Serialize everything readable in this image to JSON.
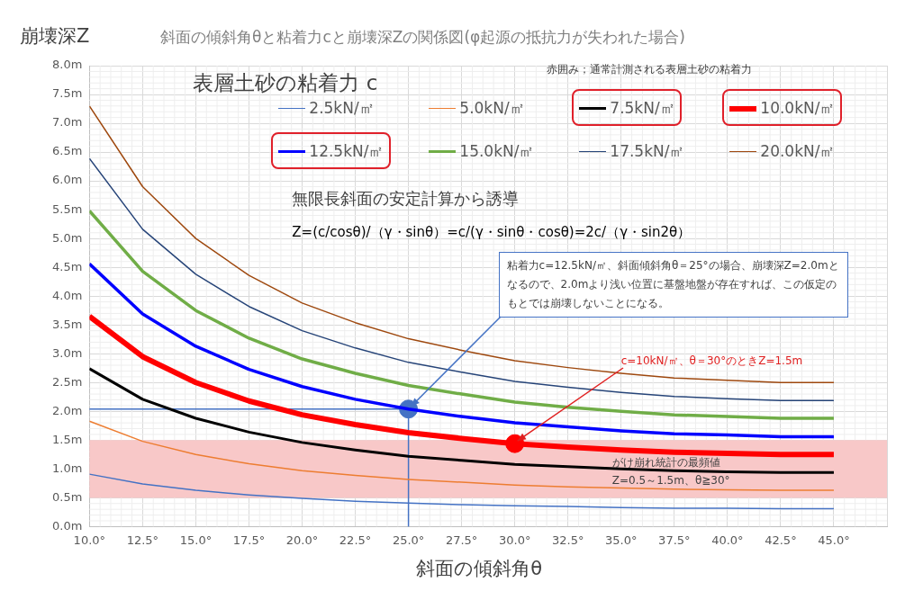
{
  "chart_data": {
    "type": "line",
    "title": "斜面の傾斜角θと粘着力cと崩壊深Zの関係図(φ起源の抵抗力が失われた場合)",
    "ylabel": "崩壊深Z",
    "xlabel": "斜面の傾斜角θ",
    "legend_title": "表層土砂の粘着力 c",
    "x": [
      10,
      12.5,
      15,
      17.5,
      20,
      22.5,
      25,
      27.5,
      30,
      32.5,
      35,
      37.5,
      40,
      42.5,
      45
    ],
    "series": [
      {
        "name": "2.5kN/㎡",
        "color": "#4472c4",
        "values": [
          0.91,
          0.74,
          0.63,
          0.55,
          0.49,
          0.44,
          0.41,
          0.38,
          0.36,
          0.35,
          0.33,
          0.32,
          0.32,
          0.31,
          0.31
        ]
      },
      {
        "name": "5.0kN/㎡",
        "color": "#ed7d31",
        "values": [
          1.83,
          1.48,
          1.25,
          1.09,
          0.97,
          0.89,
          0.82,
          0.77,
          0.72,
          0.69,
          0.67,
          0.65,
          0.64,
          0.63,
          0.63
        ]
      },
      {
        "name": "7.5kN/㎡",
        "color": "#000000",
        "values": [
          2.74,
          2.21,
          1.88,
          1.64,
          1.46,
          1.33,
          1.22,
          1.15,
          1.08,
          1.04,
          1.0,
          0.97,
          0.95,
          0.94,
          0.94
        ]
      },
      {
        "name": "10.0kN/㎡",
        "color": "#ff0000",
        "values": [
          3.65,
          2.95,
          2.5,
          2.18,
          1.94,
          1.77,
          1.63,
          1.53,
          1.44,
          1.38,
          1.33,
          1.29,
          1.27,
          1.25,
          1.25
        ]
      },
      {
        "name": "12.5kN/㎡",
        "color": "#0000ff",
        "values": [
          4.56,
          3.69,
          3.13,
          2.73,
          2.43,
          2.21,
          2.04,
          1.91,
          1.8,
          1.73,
          1.66,
          1.61,
          1.59,
          1.56,
          1.56
        ]
      },
      {
        "name": "15.0kN/㎡",
        "color": "#70ad47",
        "values": [
          5.48,
          4.43,
          3.75,
          3.27,
          2.91,
          2.66,
          2.45,
          2.3,
          2.16,
          2.07,
          2.0,
          1.94,
          1.91,
          1.88,
          1.88
        ]
      },
      {
        "name": "17.5kN/㎡",
        "color": "#264478",
        "values": [
          6.39,
          5.16,
          4.38,
          3.82,
          3.4,
          3.1,
          2.85,
          2.68,
          2.52,
          2.42,
          2.33,
          2.26,
          2.22,
          2.19,
          2.19
        ]
      },
      {
        "name": "20.0kN/㎡",
        "color": "#9e480e",
        "values": [
          7.3,
          5.9,
          5.0,
          4.36,
          3.88,
          3.54,
          3.26,
          3.06,
          2.88,
          2.76,
          2.66,
          2.58,
          2.54,
          2.5,
          2.5
        ]
      },
      {
        "type": "scatter",
        "x": [
          25
        ],
        "values": [
          2.04
        ],
        "color": "#4472c4"
      },
      {
        "type": "scatter",
        "x": [
          30
        ],
        "values": [
          1.44
        ],
        "color": "#ff0000"
      }
    ],
    "xlim": [
      10,
      47.5
    ],
    "xticks": [
      {
        "value": 10,
        "label": "10.0°"
      },
      {
        "value": 12.5,
        "label": "12.5°"
      },
      {
        "value": 15,
        "label": "15.0°"
      },
      {
        "value": 17.5,
        "label": "17.5°"
      },
      {
        "value": 20,
        "label": "20.0°"
      },
      {
        "value": 22.5,
        "label": "22.5°"
      },
      {
        "value": 25,
        "label": "25.0°"
      },
      {
        "value": 27.5,
        "label": "27.5°"
      },
      {
        "value": 30,
        "label": "30.0°"
      },
      {
        "value": 32.5,
        "label": "32.5°"
      },
      {
        "value": 35,
        "label": "35.0°"
      },
      {
        "value": 37.5,
        "label": "37.5°"
      },
      {
        "value": 40,
        "label": "40.0°"
      },
      {
        "value": 42.5,
        "label": "42.5°"
      },
      {
        "value": 45,
        "label": "45.0°"
      },
      {
        "value": 47.5,
        "label": null
      }
    ],
    "ylim": [
      0,
      8
    ],
    "yticks": [
      {
        "value": 0,
        "label": "0.0m"
      },
      {
        "value": 0.5,
        "label": "0.5m"
      },
      {
        "value": 1,
        "label": "1.0m"
      },
      {
        "value": 1.5,
        "label": "1.5m"
      },
      {
        "value": 2,
        "label": "2.0m"
      },
      {
        "value": 2.5,
        "label": "2.5m"
      },
      {
        "value": 3,
        "label": "3.0m"
      },
      {
        "value": 3.5,
        "label": "3.5m"
      },
      {
        "value": 4,
        "label": "4.0m"
      },
      {
        "value": 4.5,
        "label": "4.5m"
      },
      {
        "value": 5,
        "label": "5.0m"
      },
      {
        "value": 5.5,
        "label": "5.5m"
      },
      {
        "value": 6,
        "label": "6.0m"
      },
      {
        "value": 6.5,
        "label": "6.5m"
      },
      {
        "value": 7,
        "label": "7.0m"
      },
      {
        "value": 7.5,
        "label": "7.5m"
      },
      {
        "value": 8,
        "label": "8.0m"
      }
    ],
    "grid": true,
    "legend": "top",
    "ref_lines": [
      {
        "axis": "y",
        "value": 2.04,
        "color": "#4472c4"
      },
      {
        "axis": "x",
        "value": 25,
        "color": "#4472c4"
      }
    ],
    "bands": [
      {
        "axis": "y",
        "from": 0.5,
        "to": 1.5,
        "label": "がけ崩れ統計の最頻値",
        "color": "#f8c8c8"
      }
    ],
    "annotations": [
      "赤囲み；通常計測される表層土砂の粘着力",
      "無限長斜面の安定計算から誘導",
      "Z=(c/cosθ)/（γ・sinθ）=c/(γ・sinθ・cosθ)=2c/（γ・sin2θ）",
      {
        "text": "粘着力c=12.5kN/㎡、斜面傾斜角θ＝25°の場合、崩壊深Z=2.0mとなるので、2.0mより浅い位置に基盤地盤が存在すれば、この仮定のもとでは崩壊しないことになる。",
        "x": 25,
        "y": 2.04
      },
      {
        "text": "c=10kN/㎡、θ＝30°のときZ=1.5m",
        "x": 30,
        "y": 1.44
      },
      "Z=0.5～1.5m、θ≧30°"
    ]
  }
}
